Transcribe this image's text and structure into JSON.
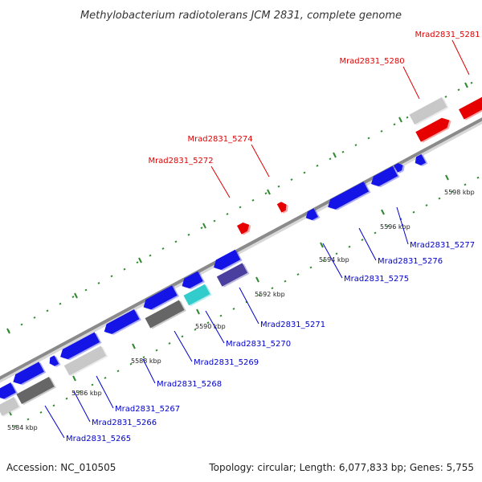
{
  "title": "Methylobacterium radiotolerans JCM 2831, complete genome",
  "footer": {
    "accession": "Accession: NC_010505",
    "summary": "Topology: circular; Length: 6,077,833 bp; Genes: 5,755"
  },
  "colors": {
    "backbone": "#8a8a8a",
    "ticks": "#2e8b2e",
    "forward_label": "#e00000",
    "reverse_label": "#0000cc",
    "gene_red": "#e60000",
    "gene_blue": "#1414e6",
    "gene_dark_gray": "#666666",
    "gene_light_gray": "#c8c8c8",
    "gene_cyan": "#33cccc",
    "gene_slate": "#4a3f9e"
  },
  "tick_labels": [
    "5584 kbp",
    "5586 kbp",
    "5588 kbp",
    "5590 kbp",
    "5592 kbp",
    "5594 kbp",
    "5596 kbp",
    "5598 kbp"
  ],
  "forward_labels": [
    "Mrad2831_5272",
    "Mrad2831_5274",
    "Mrad2831_5280",
    "Mrad2831_5281"
  ],
  "reverse_labels": [
    "Mrad2831_5265",
    "Mrad2831_5266",
    "Mrad2831_5267",
    "Mrad2831_5268",
    "Mrad2831_5269",
    "Mrad2831_5270",
    "Mrad2831_5271",
    "Mrad2831_5275",
    "Mrad2831_5276",
    "Mrad2831_5277"
  ]
}
